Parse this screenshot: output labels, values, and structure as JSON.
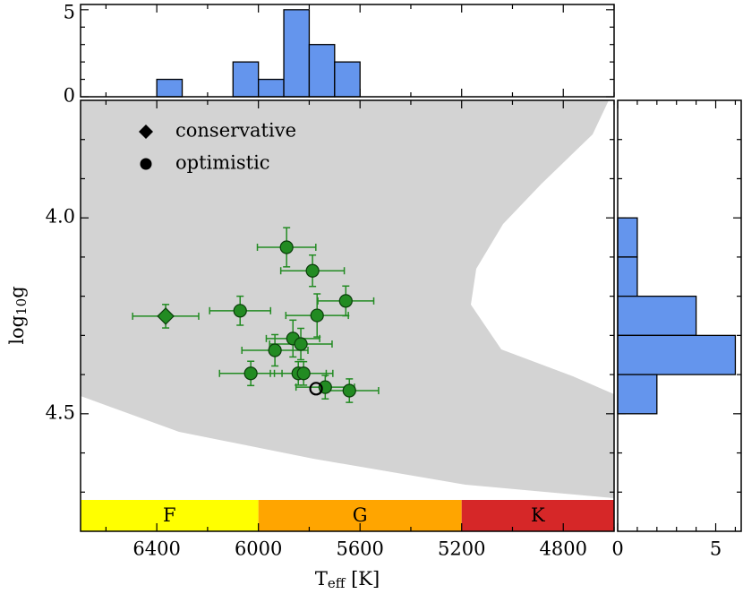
{
  "chart_data": [
    {
      "type": "scatter",
      "xlabel": [
        "T",
        "eff",
        " [K]"
      ],
      "ylabel": [
        "log",
        "10",
        "g"
      ],
      "xlim": [
        6700,
        4600
      ],
      "xticks": [
        6400,
        6000,
        5600,
        5200,
        4800
      ],
      "xminorticks": [
        6600,
        6200,
        5800,
        5400,
        5000,
        4600
      ],
      "ylim": [
        3.7,
        4.8
      ],
      "yinverted": true,
      "yticks": [
        {
          "value": 4.0,
          "label": "4.0"
        },
        4.5
      ],
      "yminorticks": [
        3.8,
        3.9,
        4.1,
        4.2,
        4.3,
        4.4,
        4.6,
        4.7
      ],
      "bands": [
        {
          "label": "F",
          "from": 6700,
          "to": 6000,
          "color": "#ffff00"
        },
        {
          "label": "G",
          "from": 6000,
          "to": 5200,
          "color": "#ffa500"
        },
        {
          "label": "K",
          "from": 5200,
          "to": 4600,
          "color": "#d62728"
        }
      ],
      "series": [
        {
          "name": "conservative",
          "marker": "diamond",
          "color": "#228b22",
          "x": [
            6365
          ],
          "y": [
            4.251
          ],
          "xerr": [
            130
          ],
          "yerr": [
            0.03
          ]
        },
        {
          "name": "optimistic",
          "marker": "circle",
          "color": "#228b22",
          "x": [
            6072,
            5889,
            5787,
            5656,
            5769,
            5864,
            5833,
            5935,
            6030,
            5843,
            5822,
            5737,
            5642
          ],
          "y": [
            4.237,
            4.075,
            4.135,
            4.212,
            4.249,
            4.308,
            4.322,
            4.338,
            4.397,
            4.397,
            4.397,
            4.432,
            4.441
          ],
          "xerr": [
            120,
            115,
            125,
            110,
            123,
            105,
            123,
            130,
            123,
            110,
            115,
            115,
            115
          ],
          "yerr": [
            0.037,
            0.05,
            0.04,
            0.038,
            0.055,
            0.047,
            0.04,
            0.04,
            0.031,
            0.03,
            0.03,
            0.03,
            0.03
          ]
        },
        {
          "marker": "open",
          "color": "#000000",
          "x": [
            5773
          ],
          "y": [
            4.436
          ]
        }
      ]
    },
    {
      "type": "histogram",
      "orientation": "vertical",
      "color": "#6495ed",
      "bins": [
        6400,
        6300,
        6200,
        6100,
        6000,
        5900,
        5800,
        5700,
        5600
      ],
      "counts": [
        1,
        0,
        0,
        2,
        1,
        5,
        3,
        2
      ],
      "ylim": [
        0,
        5.3
      ],
      "yticks": [
        0,
        5
      ],
      "yminorticks": [
        1,
        2,
        3,
        4
      ]
    },
    {
      "type": "histogram",
      "orientation": "horizontal",
      "color": "#6495ed",
      "bins": [
        4.0,
        4.1,
        4.2,
        4.3,
        4.4,
        4.5
      ],
      "counts": [
        1,
        1,
        4,
        6,
        2
      ],
      "xlim": [
        0,
        6.3
      ],
      "xticks": [
        0,
        5
      ],
      "xminorticks": [
        1,
        2,
        3,
        4,
        6
      ]
    }
  ]
}
